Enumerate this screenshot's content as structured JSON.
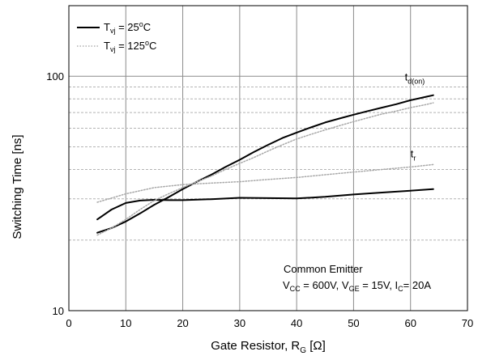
{
  "chart_data": {
    "type": "line",
    "xlabel": {
      "main": "Gate Resistor, R",
      "sub": "G",
      "unit": " [Ω]"
    },
    "ylabel": "Switching Time [ns]",
    "xlim": [
      0,
      70
    ],
    "ylim": [
      10,
      200
    ],
    "yscale": "log",
    "grid": true,
    "x_ticks": [
      "0",
      "10",
      "20",
      "30",
      "40",
      "50",
      "60",
      "70"
    ],
    "y_ticks": [
      "10",
      "100"
    ],
    "legend": {
      "placement": "top-left",
      "entries": [
        {
          "main": "T",
          "sub": "vj",
          "rest": " = 25",
          "sup": "o",
          "end": "C",
          "style": "solid"
        },
        {
          "main": "T",
          "sub": "vj",
          "rest": " = 125",
          "sup": "o",
          "end": "C",
          "style": "dotted"
        }
      ]
    },
    "annotation": {
      "line1": "Common Emitter",
      "line2": [
        {
          "t": "V"
        },
        {
          "sub": "CC"
        },
        {
          "t": " = 600V, V"
        },
        {
          "sub": "GE"
        },
        {
          "t": " = 15V, I"
        },
        {
          "sub": "C"
        },
        {
          "t": "= 20A"
        }
      ]
    },
    "curve_labels": [
      {
        "main": "t",
        "sub": "d(on)",
        "x": 59,
        "y": 96
      },
      {
        "main": "t",
        "sub": "r",
        "x": 60,
        "y": 45
      }
    ],
    "series": [
      {
        "key": "td_on_25",
        "temp": "25",
        "style": "solid",
        "x": [
          5,
          7.5,
          10,
          12.5,
          15,
          17.5,
          20,
          22.5,
          25,
          27.5,
          30,
          32.5,
          35,
          37.5,
          40,
          42.5,
          45,
          47.5,
          50,
          52.5,
          55,
          57.5,
          60,
          62.5,
          64
        ],
        "y": [
          21.5,
          22.5,
          24,
          26,
          28.3,
          30.5,
          33,
          35.5,
          38,
          41,
          44,
          47.5,
          51,
          54.5,
          57.5,
          60.5,
          63.5,
          66,
          68.5,
          71,
          73.5,
          76,
          79,
          81.5,
          83
        ]
      },
      {
        "key": "tr_25",
        "temp": "25",
        "style": "solid",
        "x": [
          5,
          7.5,
          10,
          12.5,
          15,
          17.5,
          20,
          25,
          30,
          35,
          40,
          45,
          50,
          55,
          60,
          64
        ],
        "y": [
          24.5,
          27,
          28.8,
          29.5,
          29.7,
          29.6,
          29.6,
          29.9,
          30.3,
          30.2,
          30.1,
          30.6,
          31.3,
          31.9,
          32.5,
          33
        ]
      },
      {
        "key": "td_on_125",
        "temp": "125",
        "style": "dotted",
        "x": [
          5,
          7.5,
          10,
          12.5,
          15,
          17.5,
          20,
          22.5,
          25,
          27.5,
          30,
          32.5,
          35,
          37.5,
          40,
          42.5,
          45,
          47.5,
          50,
          52.5,
          55,
          57.5,
          60,
          62.5,
          64
        ],
        "y": [
          21,
          22.5,
          24.5,
          27,
          29.5,
          31.5,
          33.5,
          35.5,
          37.5,
          40,
          42.5,
          45,
          48,
          51,
          54,
          56.5,
          59,
          61.5,
          64,
          66.5,
          69,
          71,
          73.5,
          75.5,
          77
        ]
      },
      {
        "key": "tr_125",
        "temp": "125",
        "style": "dotted",
        "x": [
          5,
          10,
          15,
          20,
          25,
          30,
          35,
          40,
          45,
          50,
          55,
          60,
          64
        ],
        "y": [
          29,
          31.5,
          33.5,
          34.5,
          35,
          35.5,
          36.3,
          37,
          38,
          39,
          40,
          41,
          42
        ]
      }
    ]
  }
}
